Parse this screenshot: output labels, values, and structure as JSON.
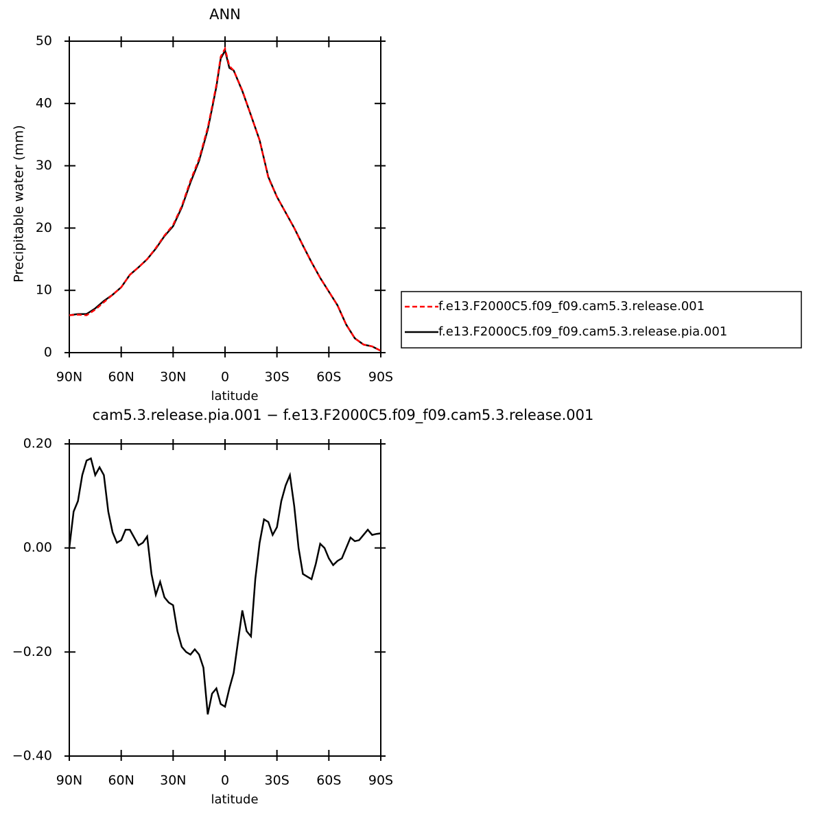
{
  "chart_data": [
    {
      "type": "line",
      "title": "ANN",
      "xlabel": "latitude",
      "ylabel": "Precipitable water (mm)",
      "xlim": [
        90,
        -90
      ],
      "ylim": [
        0,
        50
      ],
      "xticks": [
        {
          "value": 90,
          "label": "90N"
        },
        {
          "value": 60,
          "label": "60N"
        },
        {
          "value": 30,
          "label": "30N"
        },
        0,
        {
          "value": -30,
          "label": "30S"
        },
        {
          "value": -60,
          "label": "60S"
        },
        {
          "value": -90,
          "label": "90S"
        }
      ],
      "yticks": [
        0,
        10,
        20,
        30,
        40,
        50
      ],
      "x": [
        90,
        85,
        80,
        75,
        70,
        65,
        60,
        55,
        50,
        45,
        40,
        35,
        30,
        25,
        20,
        15,
        10,
        7.5,
        5,
        2.5,
        0,
        -2.5,
        -5,
        -10,
        -15,
        -20,
        -25,
        -30,
        -35,
        -40,
        -45,
        -50,
        -55,
        -60,
        -65,
        -70,
        -75,
        -80,
        -85,
        -90
      ],
      "series": [
        {
          "name": "f.e13.F2000C5.f09_f09.cam5.3.release.001",
          "color": "#ff0000",
          "linestyle": "dashed",
          "values": [
            6.0,
            6.1,
            6.0,
            6.9,
            8.1,
            9.3,
            10.5,
            12.5,
            13.7,
            15.0,
            16.8,
            18.8,
            20.5,
            23.5,
            27.6,
            31.1,
            36.1,
            39.5,
            43.0,
            47.5,
            48.8,
            46.0,
            45.3,
            42.1,
            38.1,
            34.1,
            28.1,
            25.0,
            22.5,
            20.0,
            17.2,
            14.5,
            12.0,
            9.8,
            7.6,
            4.5,
            2.3,
            1.3,
            1.0,
            0.3
          ]
        },
        {
          "name": "f.e13.F2000C5.f09_f09.cam5.3.release.pia.001",
          "color": "#000000",
          "linestyle": "solid",
          "values": [
            6.0,
            6.2,
            6.2,
            7.1,
            8.3,
            9.3,
            10.5,
            12.5,
            13.7,
            15.0,
            16.7,
            18.7,
            20.3,
            23.3,
            27.3,
            30.8,
            35.8,
            39.2,
            42.7,
            47.2,
            48.5,
            45.7,
            45.3,
            42.0,
            38.1,
            34.1,
            28.2,
            25.0,
            22.5,
            20.0,
            17.2,
            14.5,
            12.0,
            9.8,
            7.6,
            4.5,
            2.3,
            1.3,
            1.0,
            0.3
          ]
        }
      ]
    },
    {
      "type": "line",
      "title": "cam5.3.release.pia.001 − f.e13.F2000C5.f09_f09.cam5.3.release.001",
      "xlabel": "latitude",
      "xlim": [
        90,
        -90
      ],
      "ylim": [
        -0.4,
        0.2
      ],
      "xticks": [
        {
          "value": 90,
          "label": "90N"
        },
        {
          "value": 60,
          "label": "60N"
        },
        {
          "value": 30,
          "label": "30N"
        },
        0,
        {
          "value": -30,
          "label": "30S"
        },
        {
          "value": -60,
          "label": "60S"
        },
        {
          "value": -90,
          "label": "90S"
        }
      ],
      "yticks": [
        {
          "value": 0.2,
          "label": "0.20"
        },
        {
          "value": 0,
          "label": "0.00"
        },
        {
          "value": -0.2,
          "label": "−0.20"
        },
        {
          "value": -0.4,
          "label": "−0.40"
        }
      ],
      "x": [
        90,
        87.5,
        85,
        82.5,
        80,
        77.5,
        75,
        72.5,
        70,
        67.5,
        65,
        62.5,
        60,
        57.5,
        55,
        52.5,
        50,
        47.5,
        45,
        42.5,
        40,
        37.5,
        35,
        32.5,
        30,
        27.5,
        25,
        22.5,
        20,
        17.5,
        15,
        12.5,
        10,
        7.5,
        5,
        2.5,
        0,
        -2.5,
        -5,
        -7.5,
        -10,
        -12.5,
        -15,
        -17.5,
        -20,
        -22.5,
        -25,
        -27.5,
        -30,
        -32.5,
        -35,
        -37.5,
        -40,
        -42.5,
        -45,
        -47.5,
        -50,
        -52.5,
        -55,
        -57.5,
        -60,
        -62.5,
        -65,
        -67.5,
        -70,
        -72.5,
        -75,
        -77.5,
        -80,
        -82.5,
        -85,
        -87.5,
        -90
      ],
      "series": [
        {
          "color": "#000000",
          "linestyle": "solid",
          "values": [
            0.0,
            0.07,
            0.09,
            0.14,
            0.168,
            0.172,
            0.14,
            0.155,
            0.14,
            0.07,
            0.03,
            0.01,
            0.015,
            0.035,
            0.035,
            0.02,
            0.005,
            0.01,
            0.022,
            -0.05,
            -0.09,
            -0.065,
            -0.095,
            -0.105,
            -0.11,
            -0.16,
            -0.19,
            -0.2,
            -0.205,
            -0.195,
            -0.205,
            -0.23,
            -0.32,
            -0.28,
            -0.27,
            -0.3,
            -0.305,
            -0.27,
            -0.24,
            -0.18,
            -0.12,
            -0.16,
            -0.17,
            -0.06,
            0.01,
            0.055,
            0.05,
            0.025,
            0.04,
            0.09,
            0.12,
            0.14,
            0.08,
            0.0,
            -0.05,
            -0.055,
            -0.06,
            -0.03,
            0.008,
            0.0,
            -0.02,
            -0.033,
            -0.025,
            -0.02,
            0.0,
            0.02,
            0.013,
            0.015,
            0.025,
            0.035,
            0.025,
            0.027,
            0.028
          ]
        }
      ]
    }
  ]
}
